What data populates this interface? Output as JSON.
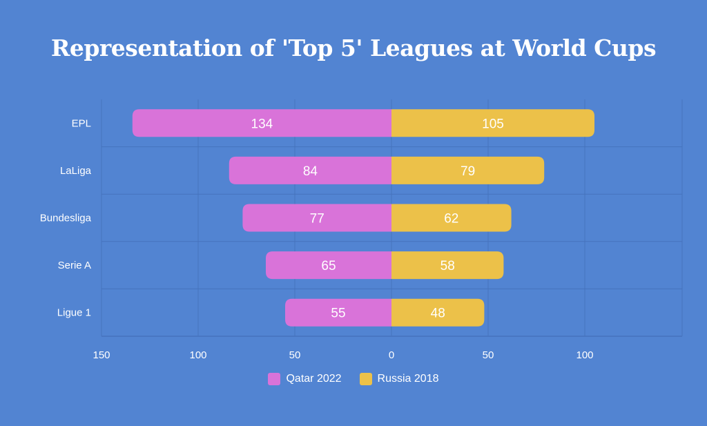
{
  "title": "Representation of 'Top 5' Leagues at World Cups",
  "colors": {
    "background": "#5284d2",
    "left": "#d973d9",
    "right": "#ecc149",
    "grid": "#4673bd",
    "text": "#ffffff"
  },
  "chart_data": {
    "type": "bar",
    "orientation": "horizontal-diverging",
    "title": "Representation of 'Top 5' Leagues at World Cups",
    "categories": [
      "EPL",
      "LaLiga",
      "Bundesliga",
      "Serie A",
      "Ligue 1"
    ],
    "series": [
      {
        "name": "Qatar 2022",
        "side": "left",
        "values": [
          134,
          84,
          77,
          65,
          55
        ]
      },
      {
        "name": "Russia 2018",
        "side": "right",
        "values": [
          105,
          79,
          62,
          58,
          48
        ]
      }
    ],
    "x_ticks": [
      "150",
      "100",
      "50",
      "0",
      "50",
      "100"
    ],
    "xlim": [
      -150,
      150
    ],
    "grid": true,
    "legend_position": "bottom"
  }
}
